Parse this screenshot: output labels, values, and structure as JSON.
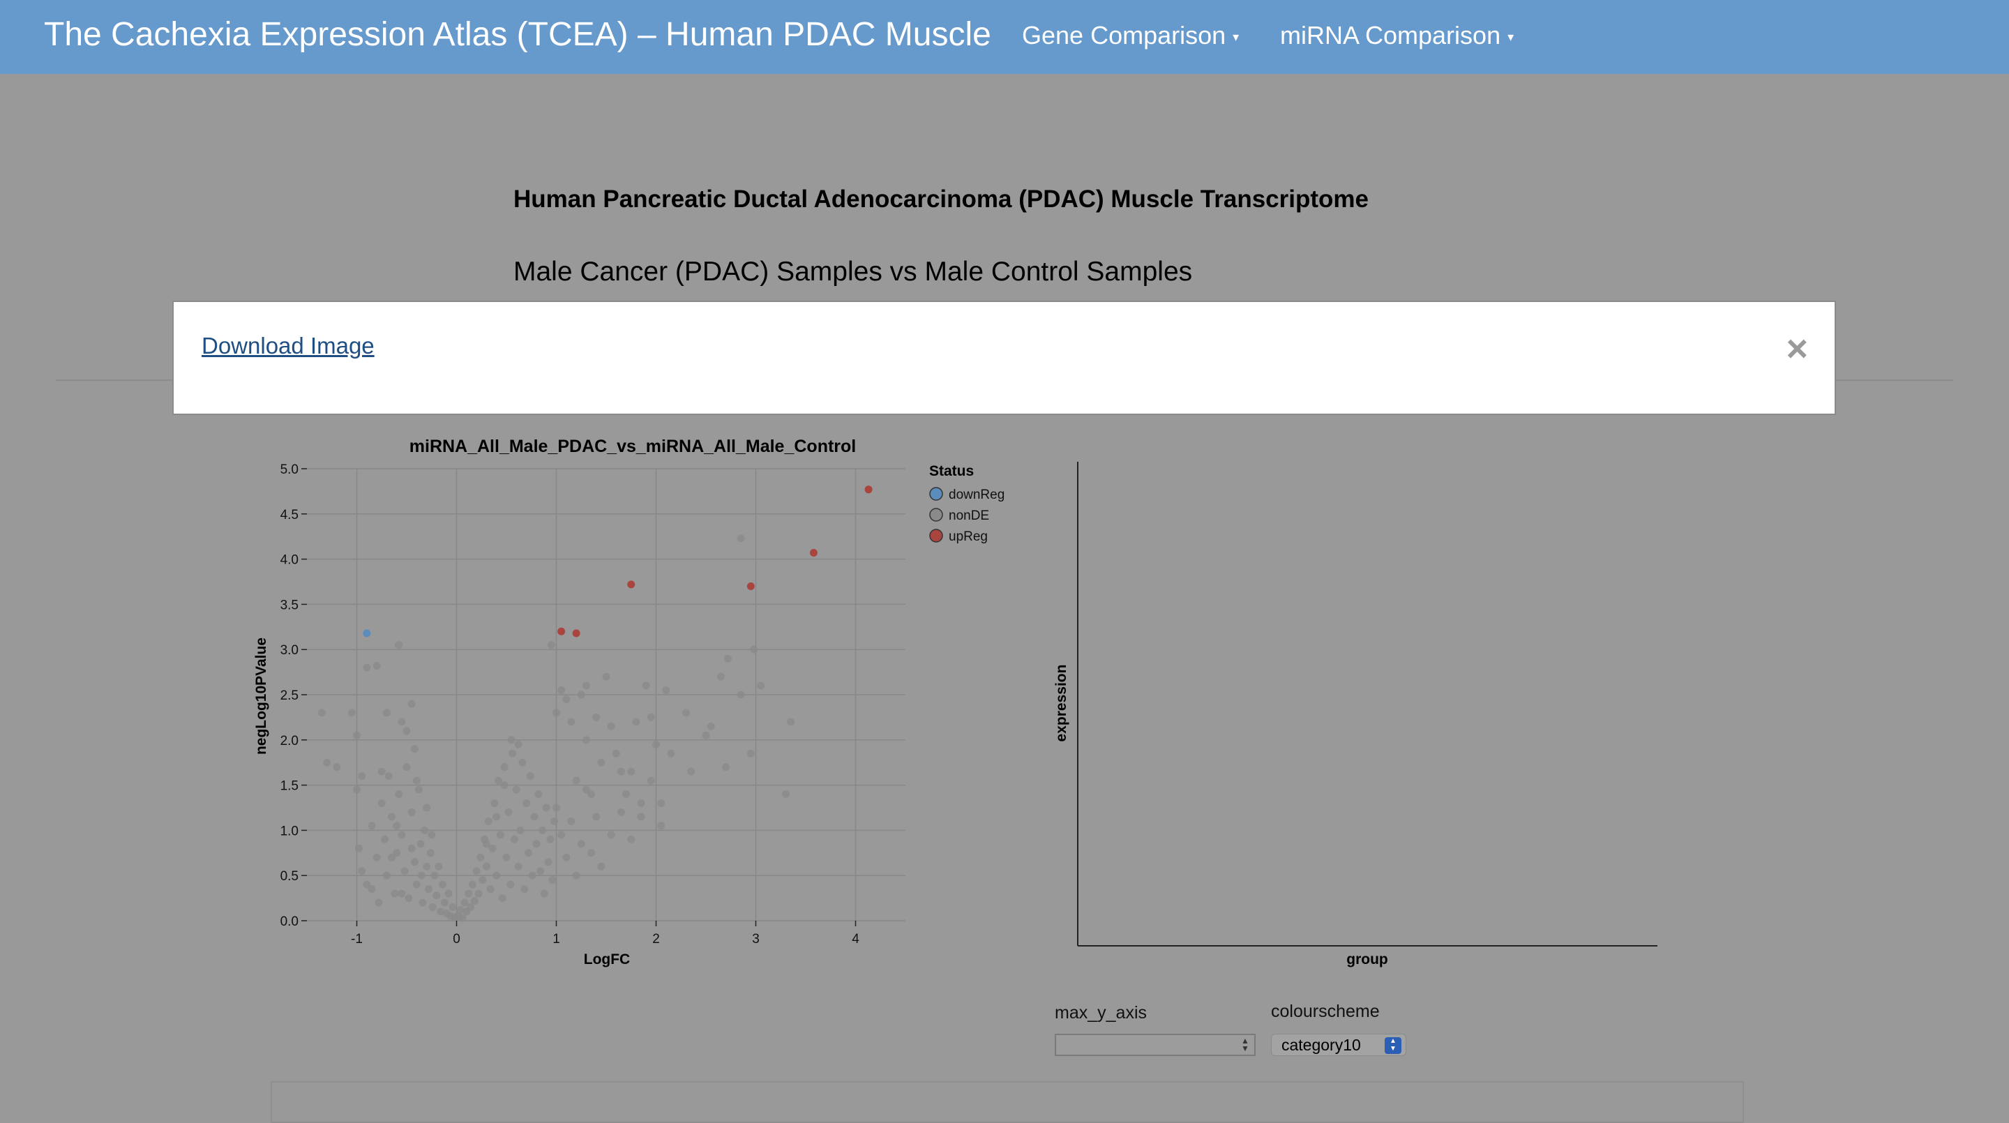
{
  "navbar": {
    "brand": "The Cachexia Expression Atlas (TCEA) – Human PDAC Muscle",
    "menus": [
      {
        "label": "Gene Comparison",
        "caret": "▾"
      },
      {
        "label": "miRNA Comparison",
        "caret": "▾"
      }
    ]
  },
  "page": {
    "heading": "Human Pancreatic Ductal Adenocarcinoma (PDAC) Muscle Transcriptome",
    "subheading": "Male Cancer (PDAC) Samples vs Male Control Samples"
  },
  "modal": {
    "download_label": "Download Image",
    "close_symbol": "×"
  },
  "colors": {
    "navbar": "#6699cc",
    "background": "#999999",
    "downReg": "#5b8cbc",
    "nonDE": "#8a8a8a",
    "upReg": "#a9443f"
  },
  "chart_data": [
    {
      "type": "scatter",
      "title": "miRNA_All_Male_PDAC_vs_miRNA_All_Male_Control",
      "xlabel": "LogFC",
      "ylabel": "negLog10PValue",
      "xlim": [
        -1.5,
        4.5
      ],
      "ylim": [
        0,
        5.0
      ],
      "xticks": [
        -1,
        0,
        1,
        2,
        3,
        4
      ],
      "yticks": [
        0.0,
        0.5,
        1.0,
        1.5,
        2.0,
        2.5,
        3.0,
        3.5,
        4.0,
        4.5,
        5.0
      ],
      "grid": true,
      "legend": {
        "title": "Status",
        "position": "right",
        "entries": [
          "downReg",
          "nonDE",
          "upReg"
        ]
      },
      "series": [
        {
          "name": "downReg",
          "points": [
            [
              -0.9,
              3.18
            ]
          ]
        },
        {
          "name": "upReg",
          "points": [
            [
              1.05,
              3.2
            ],
            [
              1.2,
              3.18
            ],
            [
              1.75,
              3.72
            ],
            [
              2.95,
              3.7
            ],
            [
              3.58,
              4.07
            ],
            [
              4.13,
              4.77
            ]
          ]
        },
        {
          "name": "nonDE",
          "points": [
            [
              -1.35,
              2.3
            ],
            [
              -1.3,
              1.75
            ],
            [
              -1.2,
              1.7
            ],
            [
              -1.05,
              2.3
            ],
            [
              -1.0,
              2.05
            ],
            [
              -0.95,
              1.6
            ],
            [
              -0.9,
              2.8
            ],
            [
              -0.8,
              2.82
            ],
            [
              -0.75,
              1.65
            ],
            [
              -0.7,
              2.3
            ],
            [
              -0.58,
              3.05
            ],
            [
              -0.55,
              2.2
            ],
            [
              -0.5,
              2.1
            ],
            [
              -0.45,
              2.4
            ],
            [
              -0.42,
              1.9
            ],
            [
              -1.0,
              1.45
            ],
            [
              -0.98,
              0.8
            ],
            [
              -0.95,
              0.55
            ],
            [
              -0.9,
              0.4
            ],
            [
              -0.85,
              1.05
            ],
            [
              -0.8,
              0.7
            ],
            [
              -0.75,
              1.3
            ],
            [
              -0.72,
              0.9
            ],
            [
              -0.7,
              0.5
            ],
            [
              -0.68,
              1.6
            ],
            [
              -0.65,
              1.15
            ],
            [
              -0.62,
              0.3
            ],
            [
              -0.6,
              0.75
            ],
            [
              -0.58,
              1.4
            ],
            [
              -0.55,
              0.95
            ],
            [
              -0.52,
              0.55
            ],
            [
              -0.5,
              1.7
            ],
            [
              -0.48,
              0.25
            ],
            [
              -0.45,
              1.2
            ],
            [
              -0.42,
              0.65
            ],
            [
              -0.4,
              0.4
            ],
            [
              -0.38,
              1.45
            ],
            [
              -0.36,
              0.85
            ],
            [
              -0.34,
              0.2
            ],
            [
              -0.32,
              1.0
            ],
            [
              -0.3,
              0.6
            ],
            [
              -0.28,
              0.35
            ],
            [
              -0.26,
              0.75
            ],
            [
              -0.24,
              0.15
            ],
            [
              -0.22,
              0.5
            ],
            [
              -0.2,
              0.28
            ],
            [
              -0.18,
              0.6
            ],
            [
              -0.16,
              0.1
            ],
            [
              -0.14,
              0.4
            ],
            [
              -0.12,
              0.2
            ],
            [
              -0.1,
              0.08
            ],
            [
              -0.08,
              0.3
            ],
            [
              -0.06,
              0.05
            ],
            [
              -0.04,
              0.15
            ],
            [
              -0.02,
              0.04
            ],
            [
              -0.3,
              1.25
            ],
            [
              -0.35,
              0.5
            ],
            [
              -0.55,
              0.3
            ],
            [
              -0.65,
              0.7
            ],
            [
              -0.78,
              0.2
            ],
            [
              -0.85,
              0.35
            ],
            [
              -0.6,
              1.05
            ],
            [
              -0.45,
              0.8
            ],
            [
              -0.25,
              0.95
            ],
            [
              -0.4,
              1.55
            ],
            [
              0.02,
              0.05
            ],
            [
              0.04,
              0.12
            ],
            [
              0.06,
              0.03
            ],
            [
              0.08,
              0.2
            ],
            [
              0.1,
              0.1
            ],
            [
              0.12,
              0.3
            ],
            [
              0.14,
              0.15
            ],
            [
              0.16,
              0.4
            ],
            [
              0.18,
              0.22
            ],
            [
              0.2,
              0.55
            ],
            [
              0.22,
              0.3
            ],
            [
              0.24,
              0.7
            ],
            [
              0.26,
              0.45
            ],
            [
              0.28,
              0.9
            ],
            [
              0.3,
              0.6
            ],
            [
              0.32,
              1.1
            ],
            [
              0.34,
              0.35
            ],
            [
              0.36,
              0.8
            ],
            [
              0.38,
              1.3
            ],
            [
              0.4,
              0.5
            ],
            [
              0.42,
              1.55
            ],
            [
              0.44,
              0.95
            ],
            [
              0.46,
              0.25
            ],
            [
              0.48,
              1.7
            ],
            [
              0.5,
              0.7
            ],
            [
              0.52,
              1.2
            ],
            [
              0.54,
              0.4
            ],
            [
              0.56,
              1.85
            ],
            [
              0.58,
              0.9
            ],
            [
              0.6,
              1.45
            ],
            [
              0.62,
              0.6
            ],
            [
              0.64,
              1.0
            ],
            [
              0.66,
              1.75
            ],
            [
              0.68,
              0.35
            ],
            [
              0.7,
              1.3
            ],
            [
              0.72,
              0.75
            ],
            [
              0.74,
              1.6
            ],
            [
              0.76,
              0.5
            ],
            [
              0.78,
              1.15
            ],
            [
              0.8,
              0.85
            ],
            [
              0.82,
              1.4
            ],
            [
              0.84,
              0.55
            ],
            [
              0.86,
              1.0
            ],
            [
              0.88,
              0.3
            ],
            [
              0.9,
              1.25
            ],
            [
              0.92,
              0.65
            ],
            [
              0.94,
              0.9
            ],
            [
              0.96,
              0.45
            ],
            [
              0.98,
              1.1
            ],
            [
              0.55,
              2.0
            ],
            [
              0.62,
              1.95
            ],
            [
              0.48,
              1.5
            ],
            [
              0.4,
              1.15
            ],
            [
              0.3,
              0.85
            ],
            [
              1.0,
              2.3
            ],
            [
              1.05,
              2.55
            ],
            [
              1.1,
              2.45
            ],
            [
              1.15,
              2.2
            ],
            [
              1.2,
              1.55
            ],
            [
              1.25,
              2.5
            ],
            [
              1.3,
              2.0
            ],
            [
              1.35,
              1.4
            ],
            [
              1.4,
              2.25
            ],
            [
              1.45,
              1.75
            ],
            [
              1.5,
              2.7
            ],
            [
              1.55,
              2.15
            ],
            [
              1.6,
              1.85
            ],
            [
              1.65,
              1.65
            ],
            [
              1.7,
              1.4
            ],
            [
              1.75,
              1.65
            ],
            [
              1.8,
              2.2
            ],
            [
              1.85,
              1.15
            ],
            [
              1.9,
              2.6
            ],
            [
              1.95,
              2.25
            ],
            [
              2.0,
              1.95
            ],
            [
              2.05,
              1.05
            ],
            [
              2.1,
              2.55
            ],
            [
              2.15,
              1.85
            ],
            [
              2.3,
              2.3
            ],
            [
              2.35,
              1.65
            ],
            [
              2.5,
              2.05
            ],
            [
              2.55,
              2.15
            ],
            [
              2.65,
              2.7
            ],
            [
              2.72,
              2.9
            ],
            [
              2.85,
              2.5
            ],
            [
              2.98,
              3.0
            ],
            [
              3.05,
              2.6
            ],
            [
              2.85,
              4.23
            ],
            [
              3.35,
              2.2
            ],
            [
              3.3,
              1.4
            ],
            [
              2.95,
              1.85
            ],
            [
              2.7,
              1.7
            ],
            [
              1.0,
              1.25
            ],
            [
              1.05,
              0.95
            ],
            [
              1.1,
              0.7
            ],
            [
              1.15,
              1.1
            ],
            [
              1.2,
              0.5
            ],
            [
              1.25,
              0.85
            ],
            [
              1.3,
              1.45
            ],
            [
              1.35,
              0.75
            ],
            [
              1.4,
              1.15
            ],
            [
              1.45,
              0.6
            ],
            [
              1.55,
              0.95
            ],
            [
              1.65,
              1.2
            ],
            [
              1.75,
              0.9
            ],
            [
              1.85,
              1.3
            ],
            [
              1.95,
              1.55
            ],
            [
              2.05,
              1.3
            ],
            [
              0.95,
              3.05
            ],
            [
              1.3,
              2.6
            ]
          ]
        }
      ]
    },
    {
      "type": "scatter",
      "title": "",
      "xlabel": "group",
      "ylabel": "expression",
      "series": []
    }
  ],
  "controls": {
    "max_y_axis_label": "max_y_axis",
    "max_y_axis_value": "",
    "colourscheme_label": "colourscheme",
    "colourscheme_value": "category10"
  }
}
